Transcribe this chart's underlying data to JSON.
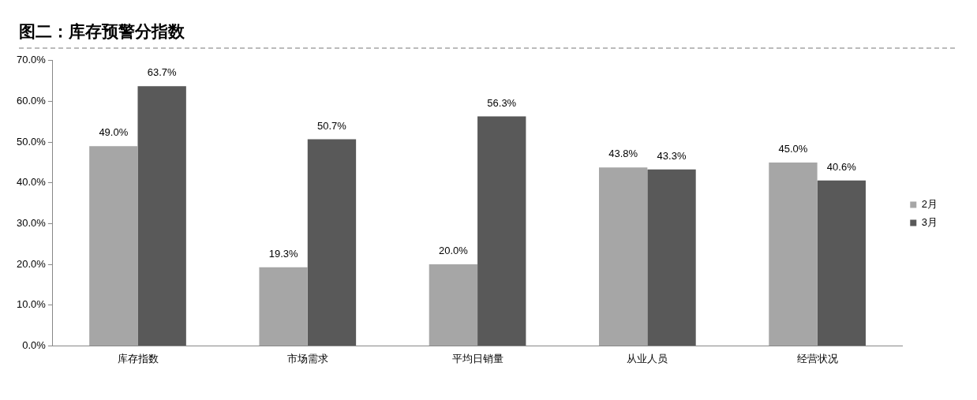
{
  "chart_data": {
    "type": "bar",
    "title": "图二：库存预警分指数",
    "categories": [
      "库存指数",
      "市场需求",
      "平均日销量",
      "从业人员",
      "经营状况"
    ],
    "series": [
      {
        "name": "2月",
        "color": "#a6a6a6",
        "values": [
          49.0,
          19.3,
          20.0,
          43.8,
          45.0
        ],
        "value_labels": [
          "49.0%",
          "19.3%",
          "20.0%",
          "43.8%",
          "45.0%"
        ]
      },
      {
        "name": "3月",
        "color": "#595959",
        "values": [
          63.7,
          50.7,
          56.3,
          43.3,
          40.6
        ],
        "value_labels": [
          "63.7%",
          "50.7%",
          "56.3%",
          "43.3%",
          "40.6%"
        ]
      }
    ],
    "ylim": [
      0,
      70
    ],
    "yticks": [
      {
        "value": 0,
        "label": "0.0%"
      },
      {
        "value": 10,
        "label": "10.0%"
      },
      {
        "value": 20,
        "label": "20.0%"
      },
      {
        "value": 30,
        "label": "30.0%"
      },
      {
        "value": 40,
        "label": "40.0%"
      },
      {
        "value": 50,
        "label": "50.0%"
      },
      {
        "value": 60,
        "label": "60.0%"
      },
      {
        "value": 70,
        "label": "70.0%"
      }
    ],
    "grid": false,
    "legend": "right"
  }
}
